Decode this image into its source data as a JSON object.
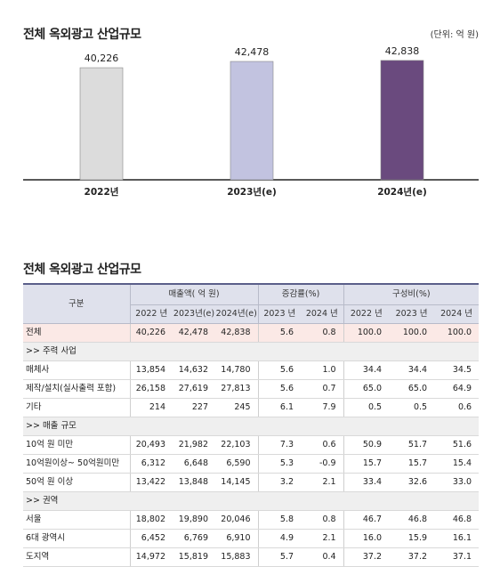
{
  "chart_title": "전체 옥외광고 산업규모",
  "unit_label": "(단위: 억 원)",
  "chart_data": {
    "type": "bar",
    "categories": [
      "2022년",
      "2023년(e)",
      "2024년(e)"
    ],
    "values": [
      40226,
      42478,
      42838
    ],
    "value_labels": [
      "40,226",
      "42,478",
      "42,838"
    ],
    "colors": [
      "#dcdcdc",
      "#c2c3e0",
      "#6a4a7e"
    ],
    "ylim": [
      0,
      46000
    ]
  },
  "table_title": "전체 옥외광고 산업규모",
  "table": {
    "header": {
      "category": "구분",
      "sales": "매출액( 억 원)",
      "growth": "증감률(%)",
      "share": "구성비(%)",
      "years": [
        "2022 년",
        "2023년(e)",
        "2024년(e)",
        "2023 년",
        "2024 년",
        "2022 년",
        "2023 년",
        "2024 년"
      ]
    },
    "rows": [
      {
        "kind": "total",
        "label": "전체",
        "values": [
          "40,226",
          "42,478",
          "42,838",
          "5.6",
          "0.8",
          "100.0",
          "100.0",
          "100.0"
        ]
      },
      {
        "kind": "section",
        "label": ">>  주력 사업"
      },
      {
        "kind": "row",
        "label": "매체사",
        "values": [
          "13,854",
          "14,632",
          "14,780",
          "5.6",
          "1.0",
          "34.4",
          "34.4",
          "34.5"
        ]
      },
      {
        "kind": "row",
        "label": "제작/설치(실사출력 포함)",
        "values": [
          "26,158",
          "27,619",
          "27,813",
          "5.6",
          "0.7",
          "65.0",
          "65.0",
          "64.9"
        ]
      },
      {
        "kind": "row",
        "label": "기타",
        "values": [
          "214",
          "227",
          "245",
          "6.1",
          "7.9",
          "0.5",
          "0.5",
          "0.6"
        ]
      },
      {
        "kind": "section",
        "label": ">>  매출 규모"
      },
      {
        "kind": "row",
        "label": "10억 원 미만",
        "values": [
          "20,493",
          "21,982",
          "22,103",
          "7.3",
          "0.6",
          "50.9",
          "51.7",
          "51.6"
        ]
      },
      {
        "kind": "row",
        "label": "10억원이상~ 50억원미만",
        "values": [
          "6,312",
          "6,648",
          "6,590",
          "5.3",
          "-0.9",
          "15.7",
          "15.7",
          "15.4"
        ]
      },
      {
        "kind": "row",
        "label": "50억 원 이상",
        "values": [
          "13,422",
          "13,848",
          "14,145",
          "3.2",
          "2.1",
          "33.4",
          "32.6",
          "33.0"
        ]
      },
      {
        "kind": "section",
        "label": ">>  권역"
      },
      {
        "kind": "row",
        "label": "서울",
        "values": [
          "18,802",
          "19,890",
          "20,046",
          "5.8",
          "0.8",
          "46.7",
          "46.8",
          "46.8"
        ]
      },
      {
        "kind": "row",
        "label": "6대 광역시",
        "values": [
          "6,452",
          "6,769",
          "6,910",
          "4.9",
          "2.1",
          "16.0",
          "15.9",
          "16.1"
        ]
      },
      {
        "kind": "row",
        "label": "도지역",
        "values": [
          "14,972",
          "15,819",
          "15,883",
          "5.7",
          "0.4",
          "37.2",
          "37.2",
          "37.1"
        ]
      }
    ]
  }
}
